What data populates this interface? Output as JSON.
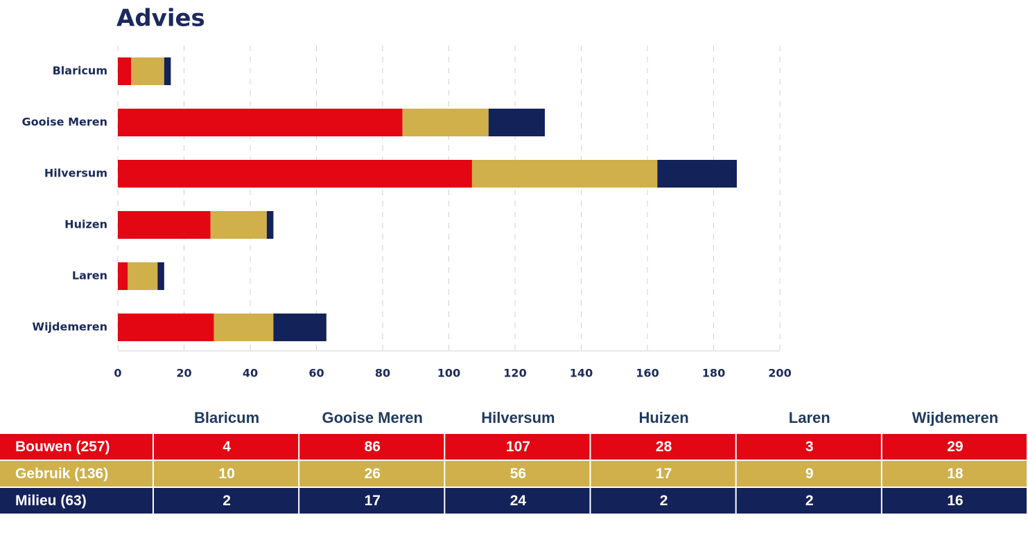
{
  "chart_data": {
    "type": "stacked-bar-horizontal",
    "title": "Advies",
    "categories": [
      "Blaricum",
      "Gooise Meren",
      "Hilversum",
      "Huizen",
      "Laren",
      "Wijdemeren"
    ],
    "series": [
      {
        "name": "Bouwen (257)",
        "color": "#e30613",
        "values": [
          4,
          86,
          107,
          28,
          3,
          29
        ]
      },
      {
        "name": "Gebruik (136)",
        "color": "#cfb04a",
        "values": [
          10,
          26,
          56,
          17,
          9,
          18
        ]
      },
      {
        "name": "Milieu (63)",
        "color": "#14225a",
        "values": [
          2,
          17,
          24,
          2,
          2,
          16
        ]
      }
    ],
    "xlim": [
      0,
      200
    ],
    "xticks": [
      0,
      20,
      40,
      60,
      80,
      100,
      120,
      140,
      160,
      180,
      200
    ],
    "grid": true
  }
}
